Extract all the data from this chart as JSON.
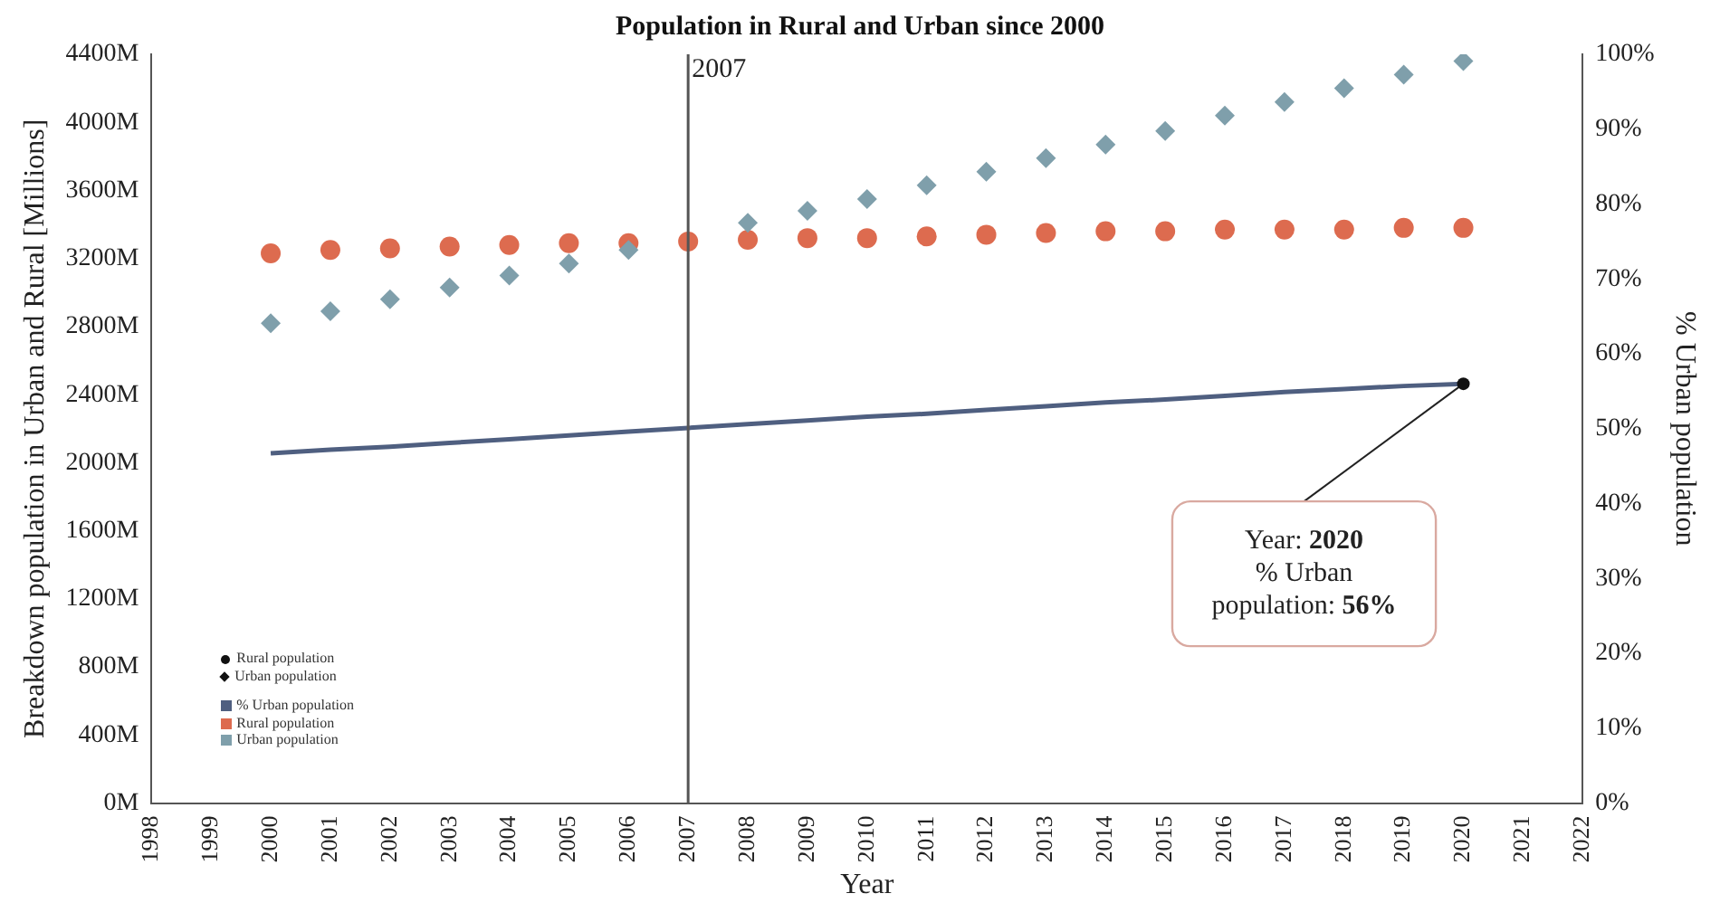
{
  "chart_data": {
    "type": "scatter",
    "title": "Population in Rural and Urban since 2000",
    "xlabel": "Year",
    "ylabel": "Breakdown population in Urban and Rural [Millions]",
    "y2label": "% Urban population",
    "x": [
      2000,
      2001,
      2002,
      2003,
      2004,
      2005,
      2006,
      2007,
      2008,
      2009,
      2010,
      2011,
      2012,
      2013,
      2014,
      2015,
      2016,
      2017,
      2018,
      2019,
      2020
    ],
    "series": [
      {
        "name": "% Urban population",
        "type": "line",
        "axis": "y2",
        "color": "#4f5f80",
        "marker": "none",
        "values": [
          46.7,
          47.2,
          47.6,
          48.1,
          48.6,
          49.1,
          49.6,
          50.1,
          50.6,
          51.1,
          51.6,
          52.0,
          52.5,
          53.0,
          53.5,
          53.9,
          54.4,
          54.9,
          55.3,
          55.7,
          56.0
        ]
      },
      {
        "name": "Rural population",
        "color": "#dd6b4f",
        "marker": "circle",
        "values": [
          3230,
          3250,
          3260,
          3270,
          3280,
          3290,
          3290,
          3300,
          3310,
          3320,
          3320,
          3330,
          3340,
          3350,
          3360,
          3360,
          3370,
          3370,
          3370,
          3380,
          3380
        ]
      },
      {
        "name": "Urban population",
        "color": "#7f9fab",
        "marker": "diamond",
        "values": [
          2820,
          2890,
          2960,
          3030,
          3100,
          3170,
          3250,
          null,
          3410,
          3480,
          3550,
          3630,
          3710,
          3790,
          3870,
          3950,
          4040,
          4120,
          4200,
          4280,
          4360
        ]
      }
    ],
    "xlim": [
      1998,
      2022
    ],
    "xticks": [
      1998,
      1999,
      2000,
      2001,
      2002,
      2003,
      2004,
      2005,
      2006,
      2007,
      2008,
      2009,
      2010,
      2011,
      2012,
      2013,
      2014,
      2015,
      2016,
      2017,
      2018,
      2019,
      2020,
      2021,
      2022
    ],
    "ylim": [
      0,
      4400
    ],
    "yticks": [
      {
        "value": 0,
        "label": "0M"
      },
      {
        "value": 400,
        "label": "400M"
      },
      {
        "value": 800,
        "label": "800M"
      },
      {
        "value": 1200,
        "label": "1200M"
      },
      {
        "value": 1600,
        "label": "1600M"
      },
      {
        "value": 2000,
        "label": "2000M"
      },
      {
        "value": 2400,
        "label": "2400M"
      },
      {
        "value": 2800,
        "label": "2800M"
      },
      {
        "value": 3200,
        "label": "3200M"
      },
      {
        "value": 3600,
        "label": "3600M"
      },
      {
        "value": 4000,
        "label": "4000M"
      },
      {
        "value": 4400,
        "label": "4400M"
      }
    ],
    "y2lim": [
      0,
      100
    ],
    "y2ticks": [
      {
        "value": 0,
        "label": "0%"
      },
      {
        "value": 10,
        "label": "10%"
      },
      {
        "value": 20,
        "label": "20%"
      },
      {
        "value": 30,
        "label": "30%"
      },
      {
        "value": 40,
        "label": "40%"
      },
      {
        "value": 50,
        "label": "50%"
      },
      {
        "value": 60,
        "label": "60%"
      },
      {
        "value": 70,
        "label": "70%"
      },
      {
        "value": 80,
        "label": "80%"
      },
      {
        "value": 90,
        "label": "90%"
      },
      {
        "value": 100,
        "label": "100%"
      }
    ],
    "ref_lines": [
      {
        "axis": "x",
        "value": 2007,
        "label": "2007",
        "color": "#555555"
      }
    ],
    "annotations": [
      {
        "text": "Year: 2020\n% Urban\npopulation: 56%",
        "x": 2020,
        "y": 2464
      }
    ],
    "grid": false,
    "legend": "bottom left"
  }
}
